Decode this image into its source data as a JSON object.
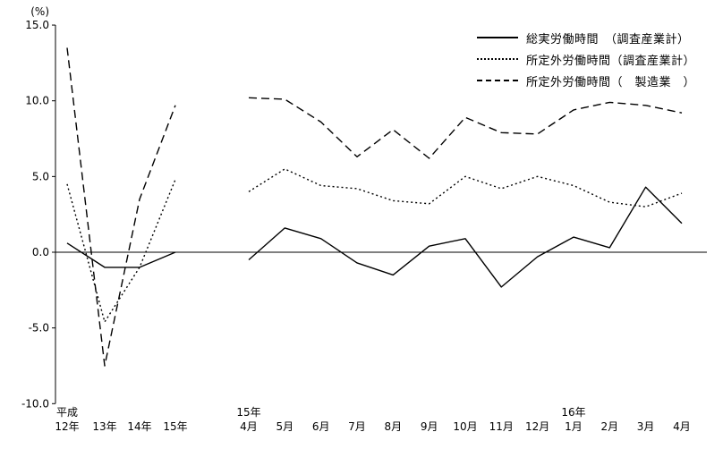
{
  "chart_data": {
    "type": "line",
    "title": "",
    "unit_label": "(%)",
    "ylim": [
      -10,
      15
    ],
    "grid": false,
    "legend_position": "top-right",
    "line_color": "#000000",
    "yticks": [
      {
        "value": 15,
        "label": "15.0"
      },
      {
        "value": 10,
        "label": "10.0"
      },
      {
        "value": 5,
        "label": "5.0"
      },
      {
        "value": 0,
        "label": "0.0"
      },
      {
        "value": -5,
        "label": "-5.0"
      },
      {
        "value": -10,
        "label": "-10.0"
      }
    ],
    "x_annual": {
      "era_label": "平成",
      "categories": [
        "12年",
        "13年",
        "14年",
        "15年"
      ]
    },
    "x_monthly": {
      "year_labels": [
        {
          "index": 0,
          "label": "15年"
        },
        {
          "index": 9,
          "label": "16年"
        }
      ],
      "categories": [
        "4月",
        "5月",
        "6月",
        "7月",
        "8月",
        "9月",
        "10月",
        "11月",
        "12月",
        "1月",
        "2月",
        "3月",
        "4月"
      ]
    },
    "series": [
      {
        "name": "総実労働時間　（調査産業計）",
        "style": "solid",
        "annual": [
          0.6,
          -1.0,
          -1.0,
          0.0
        ],
        "monthly": [
          -0.5,
          1.6,
          0.9,
          -0.7,
          -1.5,
          0.4,
          0.9,
          -2.3,
          -0.3,
          1.0,
          0.3,
          4.3,
          1.9
        ]
      },
      {
        "name": "所定外労働時間（調査産業計）",
        "style": "dotted",
        "annual": [
          4.5,
          -4.6,
          -1.0,
          4.8
        ],
        "monthly": [
          4.0,
          5.5,
          4.4,
          4.2,
          3.4,
          3.2,
          5.0,
          4.2,
          5.0,
          4.4,
          3.3,
          3.0,
          3.9
        ]
      },
      {
        "name": "所定外労働時間（　製造業　）",
        "style": "dashed",
        "annual": [
          13.5,
          -7.5,
          3.5,
          9.7
        ],
        "monthly": [
          10.2,
          10.1,
          8.6,
          6.3,
          8.1,
          6.2,
          8.9,
          7.9,
          7.8,
          9.4,
          9.9,
          9.7,
          9.2
        ]
      }
    ]
  }
}
